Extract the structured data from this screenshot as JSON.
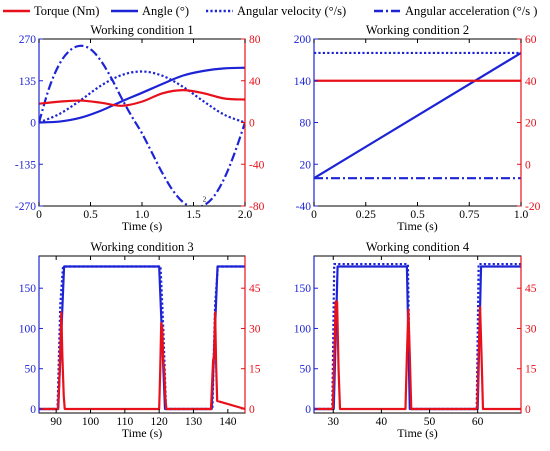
{
  "legend": {
    "items": [
      {
        "label": "Torque (Nm)",
        "style": "solid",
        "color": "#e8101a"
      },
      {
        "label": "Angle (°)",
        "style": "solid",
        "color": "#1d24d6"
      },
      {
        "label": "Angular velocity (°/s)",
        "style": "dotted",
        "color": "#1d24d6"
      },
      {
        "label": "Angular acceleration (°/s )",
        "style": "dashdot",
        "color": "#1d24d6"
      }
    ]
  },
  "colors": {
    "torque": "#e8101a",
    "blue": "#1d24d6",
    "axis": "#000000"
  },
  "chart_data": [
    {
      "type": "line",
      "title": "Working condition 1",
      "xlabel": "Time (s)",
      "xlim": [
        0,
        2
      ],
      "xticks": [
        0,
        0.5,
        1,
        1.5,
        2
      ],
      "xtick_labels": [
        "0",
        "0.5",
        "1.0",
        "1.5",
        "2.0"
      ],
      "ylim_left": [
        -270,
        270
      ],
      "yticks_left": [
        -270,
        -135,
        0,
        135,
        270
      ],
      "ytick_labels_left": [
        "-270",
        "-135",
        "0",
        "135",
        "270"
      ],
      "ylim_right": [
        -80,
        80
      ],
      "yticks_right": [
        -80,
        -40,
        0,
        40,
        80
      ],
      "ytick_labels_right": [
        "-80",
        "-40",
        "0",
        "40",
        "80"
      ],
      "annotation": "2",
      "series": [
        {
          "axis": "left",
          "style": "solid",
          "color": "#1d24d6",
          "x": [
            0,
            0.2,
            0.4,
            0.6,
            0.8,
            1.0,
            1.2,
            1.4,
            1.6,
            1.8,
            2.0
          ],
          "y": [
            0,
            3,
            15,
            38,
            68,
            96,
            125,
            152,
            167,
            175,
            177
          ]
        },
        {
          "axis": "left",
          "style": "dotted",
          "color": "#1d24d6",
          "x": [
            0,
            0.2,
            0.4,
            0.6,
            0.8,
            1.0,
            1.2,
            1.4,
            1.6,
            1.8,
            2.0
          ],
          "y": [
            0,
            28,
            71,
            119,
            153,
            165,
            151,
            115,
            68,
            25,
            0
          ]
        },
        {
          "axis": "left",
          "style": "dashdot",
          "color": "#1d24d6",
          "x": [
            0,
            0.1,
            0.2,
            0.3,
            0.4,
            0.5,
            0.6,
            0.7,
            0.8,
            0.9,
            1.0,
            1.1,
            1.2,
            1.3,
            1.4,
            1.5,
            1.6,
            1.7,
            1.8,
            1.9,
            2.0
          ],
          "y": [
            0,
            113,
            190,
            233,
            248,
            237,
            200,
            145,
            80,
            20,
            -35,
            -100,
            -165,
            -220,
            -258,
            -274,
            -268,
            -238,
            -180,
            -98,
            0
          ]
        },
        {
          "axis": "right",
          "style": "solid",
          "color": "#e8101a",
          "x": [
            0,
            0.2,
            0.4,
            0.6,
            0.8,
            1.0,
            1.2,
            1.4,
            1.6,
            1.8,
            2.0
          ],
          "y": [
            18,
            20,
            21,
            19,
            16,
            20,
            28,
            31,
            28,
            23,
            22
          ]
        }
      ]
    },
    {
      "type": "line",
      "title": "Working condition 2",
      "xlabel": "Time (s)",
      "xlim": [
        0,
        1
      ],
      "xticks": [
        0,
        0.25,
        0.5,
        0.75,
        1
      ],
      "xtick_labels": [
        "0",
        "0.25",
        "0.5",
        "0.75",
        "1.0"
      ],
      "ylim_left": [
        -40,
        200
      ],
      "yticks_left": [
        -40,
        20,
        80,
        140,
        200
      ],
      "ytick_labels_left": [
        "-40",
        "20",
        "80",
        "140",
        "200"
      ],
      "ylim_right": [
        -20,
        60
      ],
      "yticks_right": [
        -20,
        0,
        20,
        40,
        60
      ],
      "ytick_labels_right": [
        "-20",
        "0",
        "20",
        "40",
        "60"
      ],
      "series": [
        {
          "axis": "left",
          "style": "solid",
          "color": "#1d24d6",
          "x": [
            0,
            1
          ],
          "y": [
            0,
            180
          ]
        },
        {
          "axis": "left",
          "style": "dotted",
          "color": "#1d24d6",
          "x": [
            0,
            1
          ],
          "y": [
            180,
            180
          ]
        },
        {
          "axis": "left",
          "style": "dashdot",
          "color": "#1d24d6",
          "x": [
            0,
            1
          ],
          "y": [
            0,
            0
          ]
        },
        {
          "axis": "right",
          "style": "solid",
          "color": "#e8101a",
          "x": [
            0,
            1
          ],
          "y": [
            40,
            40
          ]
        }
      ]
    },
    {
      "type": "line",
      "title": "Working condition 3",
      "xlabel": "Time (s)",
      "xlim": [
        85,
        145
      ],
      "xticks": [
        90,
        100,
        110,
        120,
        130,
        140
      ],
      "xtick_labels": [
        "90",
        "100",
        "110",
        "120",
        "130",
        "140"
      ],
      "ylim_left": [
        -5,
        190
      ],
      "yticks_left": [
        0,
        50,
        100,
        150
      ],
      "ytick_labels_left": [
        "0",
        "50",
        "100",
        "150"
      ],
      "ylim_right": [
        -1.5,
        57
      ],
      "yticks_right": [
        0,
        15,
        30,
        45
      ],
      "ytick_labels_right": [
        "0",
        "15",
        "30",
        "45"
      ],
      "series": [
        {
          "axis": "left",
          "style": "solid",
          "color": "#1d24d6",
          "x": [
            85,
            90.6,
            92.3,
            120.0,
            121.7,
            135.3,
            137.0,
            145
          ],
          "y": [
            0,
            0,
            177,
            177,
            0,
            0,
            177,
            177
          ]
        },
        {
          "axis": "left",
          "style": "dotted",
          "color": "#1d24d6",
          "x": [
            85,
            90.4,
            91.2,
            92.0,
            92.4,
            120.0,
            120.4,
            121.2,
            122.0,
            135.1,
            135.5,
            136.3,
            137.1,
            137.5,
            145
          ],
          "y": [
            0,
            0,
            130,
            177,
            177,
            177,
            177,
            100,
            0,
            0,
            0,
            130,
            177,
            177,
            177
          ]
        },
        {
          "axis": "right",
          "style": "solid",
          "color": "#e8101a",
          "x": [
            85,
            90.5,
            90.9,
            91.2,
            91.5,
            91.8,
            92.2,
            92.5,
            120.0,
            120.3,
            120.6,
            120.9,
            121.2,
            121.5,
            121.8,
            122.1,
            135.1,
            135.4,
            135.7,
            136.0,
            136.3,
            136.6,
            136.9,
            145
          ],
          "y": [
            0,
            0,
            10,
            22,
            36,
            20,
            5,
            0,
            0,
            14,
            32,
            30,
            18,
            14,
            4,
            0,
            0,
            9,
            18,
            20,
            36,
            16,
            3,
            0
          ]
        }
      ]
    },
    {
      "type": "line",
      "title": "Working condition 4",
      "xlabel": "Time (s)",
      "xlim": [
        26,
        69
      ],
      "xticks": [
        30,
        40,
        50,
        60
      ],
      "xtick_labels": [
        "30",
        "40",
        "50",
        "60"
      ],
      "ylim_left": [
        -5,
        190
      ],
      "yticks_left": [
        0,
        50,
        100,
        150
      ],
      "ytick_labels_left": [
        "0",
        "50",
        "100",
        "150"
      ],
      "ylim_right": [
        -1.5,
        57
      ],
      "yticks_right": [
        0,
        15,
        30,
        45
      ],
      "ytick_labels_right": [
        "0",
        "15",
        "30",
        "45"
      ],
      "series": [
        {
          "axis": "left",
          "style": "solid",
          "color": "#1d24d6",
          "x": [
            26,
            30.1,
            30.9,
            45.3,
            45.9,
            60.0,
            60.7,
            69
          ],
          "y": [
            0,
            0,
            177,
            177,
            0,
            0,
            177,
            177
          ]
        },
        {
          "axis": "left",
          "style": "dotted",
          "color": "#1d24d6",
          "x": [
            26,
            29.8,
            30.2,
            30.7,
            31.2,
            45.1,
            45.5,
            46.0,
            59.8,
            60.2,
            60.7,
            61.1,
            69
          ],
          "y": [
            0,
            0,
            180,
            180,
            180,
            180,
            180,
            0,
            0,
            180,
            180,
            180,
            180
          ]
        },
        {
          "axis": "right",
          "style": "solid",
          "color": "#e8101a",
          "x": [
            26,
            29.9,
            30.2,
            30.5,
            30.8,
            31.1,
            31.4,
            45.0,
            45.3,
            45.6,
            45.9,
            46.2,
            59.9,
            60.2,
            60.5,
            60.8,
            61.1,
            69
          ],
          "y": [
            0,
            0,
            18,
            40,
            40,
            15,
            0,
            0,
            20,
            37,
            20,
            0,
            0,
            20,
            38,
            20,
            0,
            0
          ]
        }
      ]
    }
  ]
}
